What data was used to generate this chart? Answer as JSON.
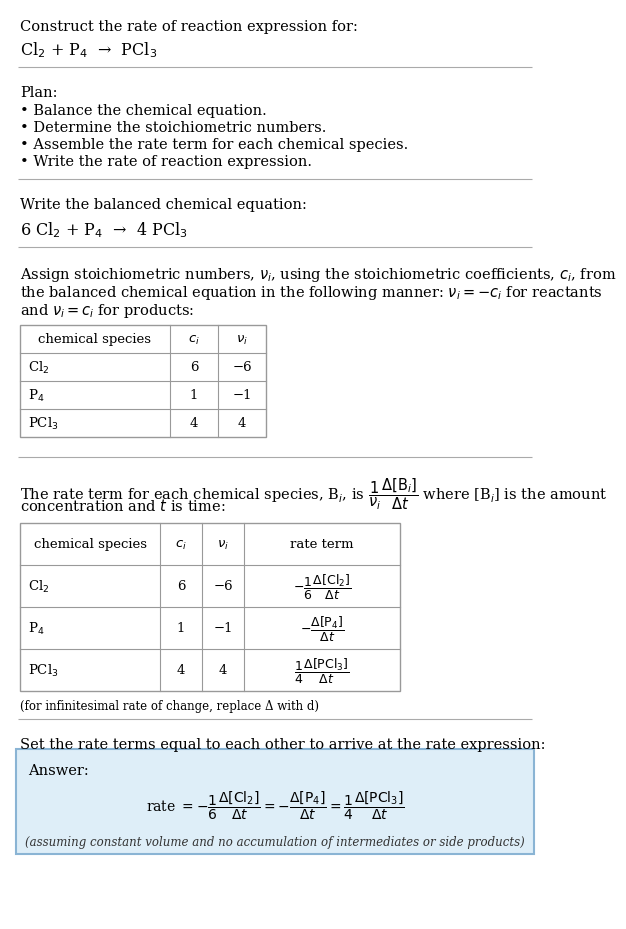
{
  "title_line1": "Construct the rate of reaction expression for:",
  "title_line2": "Cl$_2$ + P$_4$  →  PCl$_3$",
  "plan_header": "Plan:",
  "plan_items": [
    "• Balance the chemical equation.",
    "• Determine the stoichiometric numbers.",
    "• Assemble the rate term for each chemical species.",
    "• Write the rate of reaction expression."
  ],
  "balanced_header": "Write the balanced chemical equation:",
  "balanced_eq": "6 Cl$_2$ + P$_4$  →  4 PCl$_3$",
  "assign_text": [
    "Assign stoichiometric numbers, $\\nu_i$, using the stoichiometric coefficients, $c_i$, from",
    "the balanced chemical equation in the following manner: $\\nu_i = -c_i$ for reactants",
    "and $\\nu_i = c_i$ for products:"
  ],
  "table1_headers": [
    "chemical species",
    "$c_i$",
    "$\\nu_i$"
  ],
  "table1_rows": [
    [
      "Cl$_2$",
      "6",
      "−6"
    ],
    [
      "P$_4$",
      "1",
      "−1"
    ],
    [
      "PCl$_3$",
      "4",
      "4"
    ]
  ],
  "rate_text": [
    "The rate term for each chemical species, B$_i$, is $\\dfrac{1}{\\nu_i}\\dfrac{\\Delta[\\mathrm{B}_i]}{\\Delta t}$ where [B$_i$] is the amount",
    "concentration and $t$ is time:"
  ],
  "table2_headers": [
    "chemical species",
    "$c_i$",
    "$\\nu_i$",
    "rate term"
  ],
  "table2_rows": [
    [
      "Cl$_2$",
      "6",
      "−6",
      "$-\\dfrac{1}{6}\\dfrac{\\Delta[\\mathrm{Cl_2}]}{\\Delta t}$"
    ],
    [
      "P$_4$",
      "1",
      "−1",
      "$-\\dfrac{\\Delta[\\mathrm{P_4}]}{\\Delta t}$"
    ],
    [
      "PCl$_3$",
      "4",
      "4",
      "$\\dfrac{1}{4}\\dfrac{\\Delta[\\mathrm{PCl_3}]}{\\Delta t}$"
    ]
  ],
  "note": "(for infinitesimal rate of change, replace Δ with d)",
  "set_equal_text": "Set the rate terms equal to each other to arrive at the rate expression:",
  "answer_label": "Answer:",
  "answer_eq": "rate $= -\\dfrac{1}{6}\\dfrac{\\Delta[\\mathrm{Cl_2}]}{\\Delta t} = -\\dfrac{\\Delta[\\mathrm{P_4}]}{\\Delta t} = \\dfrac{1}{4}\\dfrac{\\Delta[\\mathrm{PCl_3}]}{\\Delta t}$",
  "answer_note": "(assuming constant volume and no accumulation of intermediates or side products)",
  "bg_color": "#ffffff",
  "text_color": "#000000",
  "line_color": "#aaaaaa",
  "table_line_color": "#999999",
  "answer_bg": "#deeef8",
  "answer_border": "#8ab4d4"
}
